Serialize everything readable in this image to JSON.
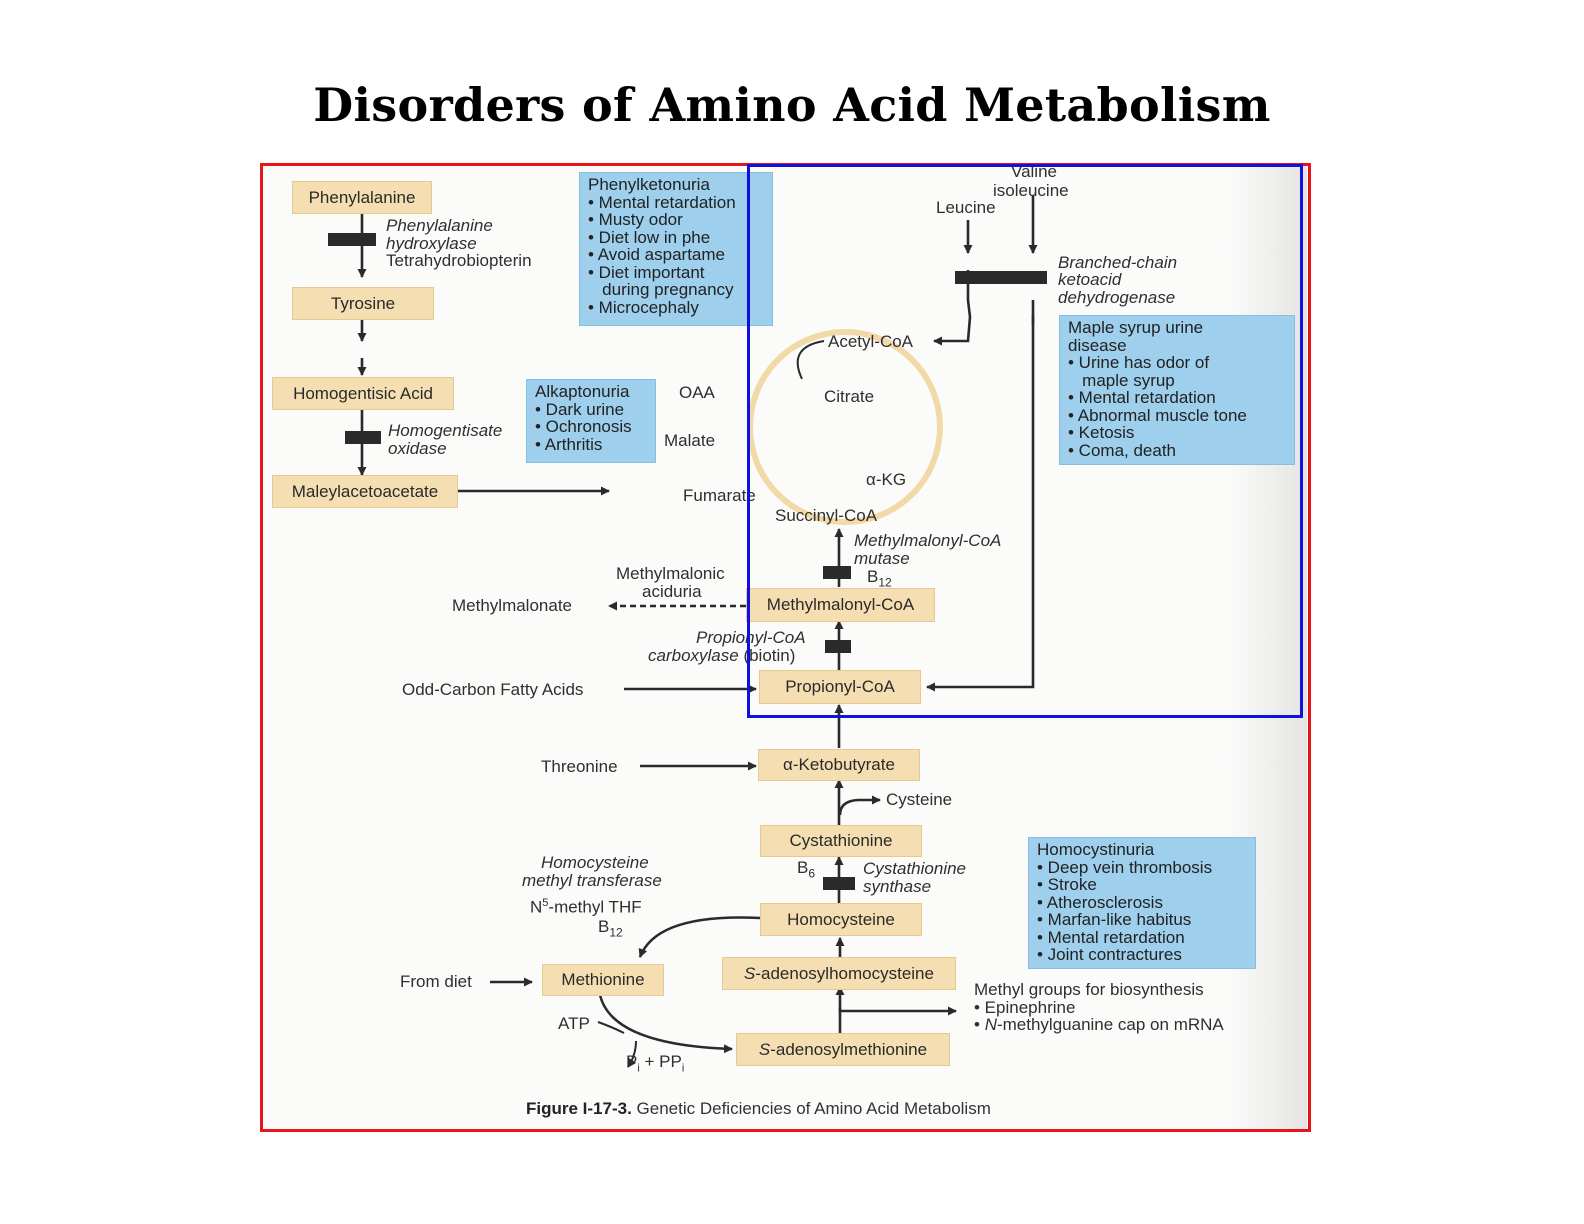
{
  "title": "Disorders of Amino Acid Metabolism",
  "nodes": {
    "phenylalanine": "Phenylalanine",
    "tyrosine": "Tyrosine",
    "homogentisic_acid": "Homogentisic Acid",
    "maleylacetoacetate": "Maleylacetoacetate",
    "methylmalonyl_coa": "Methylmalonyl-CoA",
    "propionyl_coa": "Propionyl-CoA",
    "alpha_ketobutyrate": "α-Ketobutyrate",
    "cystathionine": "Cystathionine",
    "homocysteine": "Homocysteine",
    "methionine": "Methionine",
    "s_adenosylhomocysteine_prefix": "S",
    "s_adenosylhomocysteine_rest": "-adenosylhomocysteine",
    "s_adenosylmethionine_prefix": "S",
    "s_adenosylmethionine_rest": "-adenosylmethionine"
  },
  "labels": {
    "phe_hydroxylase_1": "Phenylalanine",
    "phe_hydroxylase_2": "hydroxylase",
    "tetrahydrobiopterin": "Tetrahydrobiopterin",
    "homogentisate_1": "Homogentisate",
    "homogentisate_2": "oxidase",
    "valine": "Valine",
    "isoleucine": "isoleucine",
    "leucine": "Leucine",
    "bckd_1": "Branched-chain",
    "bckd_2": "ketoacid",
    "bckd_3": "dehydrogenase",
    "acetyl_coa": "Acetyl-CoA",
    "oaa": "OAA",
    "citrate": "Citrate",
    "malate": "Malate",
    "akg": "α-KG",
    "fumarate": "Fumarate",
    "succinyl_coa": "Succinyl-CoA",
    "mutase_1": "Methylmalonyl-CoA",
    "mutase_2": "mutase",
    "b12_mutase": "B",
    "b12_mutase_sub": "12",
    "mma_1": "Methylmalonic",
    "mma_2": "aciduria",
    "methylmalonate": "Methylmalonate",
    "pcc_1": "Propionyl-CoA",
    "pcc_2a": "carboxylase",
    "pcc_2b": " (biotin)",
    "odd_carbon": "Odd-Carbon Fatty Acids",
    "threonine": "Threonine",
    "cysteine": "Cysteine",
    "b6": "B",
    "b6_sub": "6",
    "cbs_1": "Cystathionine",
    "cbs_2": "synthase",
    "hmt_1": "Homocysteine",
    "hmt_2": "methyl transferase",
    "n5_pre": "N",
    "n5_sup": "5",
    "n5_rest": "-methyl THF",
    "b12_mt": "B",
    "b12_mt_sub": "12",
    "from_diet": "From diet",
    "atp": "ATP",
    "pi_pp_1": "P",
    "pi_pp_sub1": "i",
    "pi_pp_2": " + PP",
    "pi_pp_sub2": "i",
    "methyl_groups": "Methyl groups for biosynthesis",
    "epinephrine": "• Epinephrine",
    "mrna_bullet": "• ",
    "mrna_n": "N",
    "mrna_rest": "-methylguanine cap on mRNA"
  },
  "notes": {
    "pku": {
      "title": "Phenylketonuria",
      "items": [
        "• Mental retardation",
        "• Musty odor",
        "• Diet low in phe",
        "• Avoid aspartame",
        "• Diet important",
        "   during pregnancy",
        "• Microcephaly"
      ]
    },
    "alkaptonuria": {
      "title": "Alkaptonuria",
      "items": [
        "• Dark urine",
        "• Ochronosis",
        "• Arthritis"
      ]
    },
    "msud": {
      "title": "Maple syrup urine",
      "title2": "disease",
      "items": [
        "• Urine has odor of",
        "   maple syrup",
        "• Mental retardation",
        "• Abnormal muscle tone",
        "• Ketosis",
        "• Coma, death"
      ]
    },
    "homocystinuria": {
      "title": "Homocystinuria",
      "items": [
        "• Deep vein thrombosis",
        "• Stroke",
        "• Atherosclerosis",
        "• Marfan-like habitus",
        "• Mental retardation",
        "• Joint contractures"
      ]
    }
  },
  "caption": {
    "figure_no": "Figure I-17-3.",
    "text": " Genetic Deficiencies of Amino Acid Metabolism"
  },
  "colors": {
    "metabolite_fill": "#f5dfb2",
    "disease_box_fill": "#9ecfec",
    "highlight_red": "#e8141c",
    "highlight_blue": "#1010e0",
    "tca_cycle": "#f3ddb2"
  }
}
